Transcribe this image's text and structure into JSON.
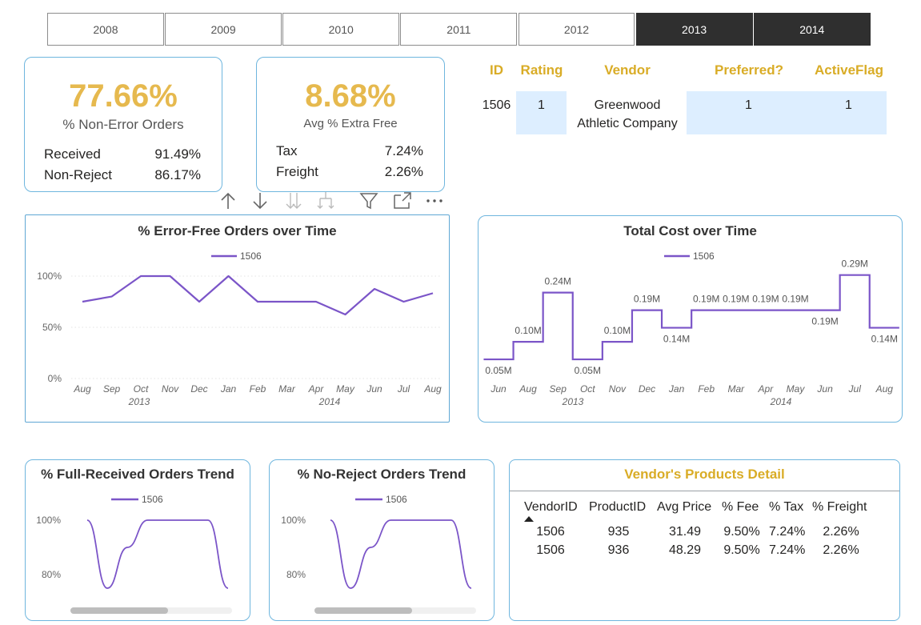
{
  "year_slicer": {
    "years": [
      "2008",
      "2009",
      "2010",
      "2011",
      "2012",
      "2013",
      "2014"
    ],
    "selected": [
      "2013",
      "2014"
    ]
  },
  "kpi_non_error": {
    "value": "77.66%",
    "label": "% Non-Error Orders",
    "rows": [
      {
        "label": "Received",
        "value": "91.49%"
      },
      {
        "label": "Non-Reject",
        "value": "86.17%"
      }
    ]
  },
  "kpi_extra_fee": {
    "value": "8.68%",
    "label": "Avg % Extra Free",
    "rows": [
      {
        "label": "Tax",
        "value": "7.24%"
      },
      {
        "label": "Freight",
        "value": "2.26%"
      }
    ]
  },
  "vendor_table": {
    "headers": [
      "ID",
      "Rating",
      "Vendor",
      "Preferred?",
      "ActiveFlag"
    ],
    "row": {
      "id": "1506",
      "rating": "1",
      "vendor_line1": "Greenwood",
      "vendor_line2": "Athletic Company",
      "preferred": "1",
      "active": "1"
    }
  },
  "toolbar": {
    "icons": [
      "arrow-up-icon",
      "arrow-down-icon",
      "drill-down-all-icon",
      "expand-hierarchy-icon",
      "filter-icon",
      "focus-mode-icon",
      "more-options-icon"
    ]
  },
  "colors": {
    "accent_gold": "#e6b94e",
    "header_gold": "#d9ac26",
    "line_purple": "#7b55c8",
    "card_border": "#6fb6de",
    "highlight": "#ddeeff",
    "slicer_selected": "#2f2f2f"
  },
  "error_free_chart": {
    "title": "% Error-Free Orders over Time",
    "legend": "1506",
    "year_labels": [
      "2013",
      "2014"
    ],
    "y_tick_labels": [
      "100%",
      "50%",
      "0%"
    ]
  },
  "total_cost_chart": {
    "title": "Total Cost over Time",
    "legend": "1506",
    "year_labels": [
      "2013",
      "2014"
    ]
  },
  "full_received_chart": {
    "title": "% Full-Received Orders Trend",
    "legend": "1506",
    "y_tick_labels": [
      "100%",
      "80%"
    ]
  },
  "no_reject_chart": {
    "title": "% No-Reject Orders Trend",
    "legend": "1506",
    "y_tick_labels": [
      "100%",
      "80%"
    ]
  },
  "products_table": {
    "title": "Vendor's Products Detail",
    "headers": [
      "VendorID",
      "ProductID",
      "Avg Price",
      "% Fee",
      "% Tax",
      "% Freight"
    ],
    "rows": [
      [
        "1506",
        "935",
        "31.49",
        "9.50%",
        "7.24%",
        "2.26%"
      ],
      [
        "1506",
        "936",
        "48.29",
        "9.50%",
        "7.24%",
        "2.26%"
      ]
    ]
  },
  "chart_data": [
    {
      "type": "line",
      "title": "% Error-Free Orders over Time",
      "x": [
        "Aug",
        "Sep",
        "Oct",
        "Nov",
        "Dec",
        "Jan",
        "Feb",
        "Mar",
        "Apr",
        "May",
        "Jun",
        "Jul",
        "Aug"
      ],
      "x_year_groups": [
        {
          "label": "2013",
          "months": [
            "Aug",
            "Sep",
            "Oct",
            "Nov",
            "Dec"
          ]
        },
        {
          "label": "2014",
          "months": [
            "Jan",
            "Feb",
            "Mar",
            "Apr",
            "May",
            "Jun",
            "Jul",
            "Aug"
          ]
        }
      ],
      "series": [
        {
          "name": "1506",
          "values": [
            75,
            80,
            100,
            100,
            75,
            100,
            75,
            75,
            75,
            62.5,
            87.5,
            75,
            83.3
          ]
        }
      ],
      "ylim": [
        0,
        100
      ],
      "y_ticks": [
        0,
        50,
        100
      ],
      "legend": "top-center",
      "grid": true
    },
    {
      "type": "line",
      "title": "Total Cost over Time",
      "x": [
        "Jun",
        "Aug",
        "Sep",
        "Oct",
        "Nov",
        "Dec",
        "Jan",
        "Feb",
        "Mar",
        "Apr",
        "May",
        "Jun",
        "Jul",
        "Aug"
      ],
      "series": [
        {
          "name": "1506",
          "values": [
            0.05,
            0.1,
            0.24,
            0.05,
            0.1,
            0.19,
            0.14,
            0.19,
            0.19,
            0.19,
            0.19,
            0.19,
            0.29,
            0.14
          ]
        }
      ],
      "data_labels": [
        "0.05M",
        "0.10M",
        "0.24M",
        "0.05M",
        "0.10M",
        "0.19M",
        "0.14M",
        "0.19M",
        "0.19M",
        "0.19M",
        "0.19M",
        "0.19M",
        "0.29M",
        "0.14M"
      ],
      "unit": "M",
      "step": true,
      "legend": "top-center"
    },
    {
      "type": "line",
      "title": "% Full-Received Orders Trend",
      "series": [
        {
          "name": "1506",
          "values": [
            100,
            75,
            90,
            100,
            100,
            100,
            100,
            75
          ]
        }
      ],
      "y_ticks": [
        80,
        100
      ],
      "legend": "top-center"
    },
    {
      "type": "line",
      "title": "% No-Reject Orders Trend",
      "series": [
        {
          "name": "1506",
          "values": [
            100,
            75,
            90,
            100,
            100,
            100,
            100,
            75
          ]
        }
      ],
      "y_ticks": [
        80,
        100
      ],
      "legend": "top-center"
    }
  ]
}
